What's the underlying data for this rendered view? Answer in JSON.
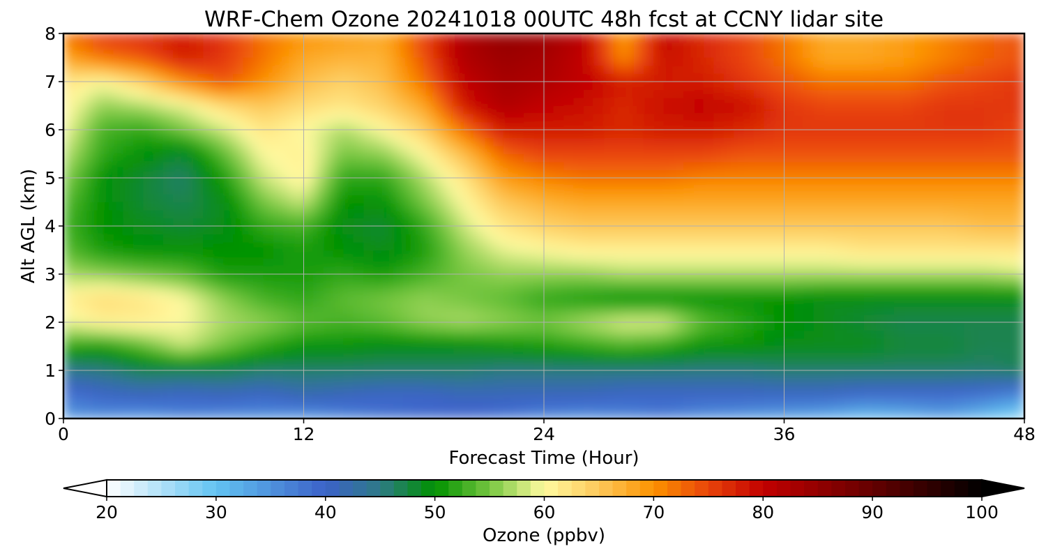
{
  "chart_data": {
    "type": "heatmap",
    "title": "WRF-Chem Ozone  20241018 00UTC 48h fcst at CCNY lidar site",
    "xlabel": "Forecast Time (Hour)",
    "ylabel": "Alt AGL (km)",
    "xlim": [
      0,
      48
    ],
    "ylim": [
      0,
      8
    ],
    "x_ticks": [
      "0",
      "12",
      "24",
      "36",
      "48"
    ],
    "y_ticks": [
      "0",
      "1",
      "2",
      "3",
      "4",
      "5",
      "6",
      "7",
      "8"
    ],
    "grid": true,
    "x_hours": [
      0,
      2,
      4,
      6,
      8,
      10,
      12,
      14,
      16,
      18,
      20,
      22,
      24,
      26,
      28,
      30,
      32,
      34,
      36,
      38,
      40,
      42,
      44,
      46,
      48
    ],
    "alt_km": [
      0,
      0.5,
      1,
      1.5,
      2,
      2.5,
      3,
      3.5,
      4,
      4.5,
      5,
      5.5,
      6,
      6.5,
      7,
      7.5,
      8
    ],
    "ozone_ppbv": [
      [
        34,
        35,
        34,
        36,
        35,
        35,
        34,
        36,
        38,
        39,
        39,
        38,
        36,
        35,
        36,
        37,
        35,
        34,
        33,
        32,
        30,
        31,
        33,
        30,
        26
      ],
      [
        38,
        40,
        41,
        40,
        41,
        40,
        42,
        41,
        40,
        40,
        41,
        41,
        41,
        41,
        40,
        40,
        40,
        40,
        40,
        40,
        39,
        39,
        39,
        38,
        36
      ],
      [
        44,
        45,
        47,
        47,
        47,
        46,
        46,
        46,
        46,
        46,
        46,
        45,
        45,
        45,
        45,
        45,
        45,
        45,
        46,
        46,
        46,
        46,
        46,
        46,
        47
      ],
      [
        52,
        51,
        54,
        58,
        55,
        52,
        50,
        50,
        49,
        49,
        49,
        50,
        51,
        52,
        53,
        52,
        50,
        50,
        49,
        49,
        49,
        48,
        48,
        47,
        47
      ],
      [
        59,
        61,
        61,
        60,
        57,
        56,
        54,
        53,
        54,
        56,
        57,
        56,
        55,
        57,
        59,
        59,
        54,
        52,
        50,
        49,
        48,
        47,
        47,
        47,
        47
      ],
      [
        61,
        63,
        62,
        60,
        56,
        53,
        52,
        54,
        55,
        56,
        55,
        54,
        52,
        51,
        50,
        50,
        50,
        50,
        50,
        49,
        49,
        49,
        49,
        49,
        49
      ],
      [
        57,
        56,
        55,
        54,
        51,
        51,
        51,
        52,
        51,
        53,
        55,
        56,
        56,
        56,
        57,
        57,
        57,
        57,
        57,
        57,
        57,
        57,
        57,
        57,
        58
      ],
      [
        54,
        51,
        50,
        50,
        50,
        50,
        51,
        50,
        49,
        51,
        56,
        59,
        60,
        61,
        61,
        61,
        61,
        61,
        61,
        61,
        62,
        62,
        62,
        62,
        62
      ],
      [
        53,
        50,
        49,
        48,
        49,
        52,
        53,
        49,
        48,
        52,
        58,
        62,
        64,
        65,
        65,
        65,
        65,
        65,
        65,
        65,
        65,
        65,
        65,
        66,
        66
      ],
      [
        54,
        50,
        48,
        47,
        49,
        55,
        58,
        50,
        50,
        55,
        60,
        65,
        67,
        68,
        68,
        68,
        68,
        68,
        68,
        68,
        68,
        68,
        68,
        68,
        68
      ],
      [
        56,
        50,
        48,
        46,
        51,
        58,
        61,
        52,
        52,
        57,
        62,
        69,
        71,
        72,
        72,
        72,
        71,
        71,
        71,
        71,
        71,
        71,
        71,
        71,
        71
      ],
      [
        58,
        52,
        50,
        48,
        54,
        60,
        61,
        55,
        56,
        60,
        66,
        73,
        75,
        75,
        75,
        75,
        75,
        74,
        74,
        74,
        74,
        74,
        74,
        74,
        74
      ],
      [
        60,
        53,
        52,
        55,
        58,
        62,
        60,
        57,
        60,
        64,
        72,
        78,
        78,
        78,
        77,
        78,
        78,
        77,
        76,
        76,
        76,
        76,
        76,
        76,
        75
      ],
      [
        61,
        56,
        57,
        59,
        63,
        65,
        63,
        62,
        64,
        68,
        78,
        82,
        80,
        79,
        77,
        79,
        80,
        79,
        76,
        75,
        75,
        75,
        76,
        76,
        76
      ],
      [
        62,
        60,
        64,
        70,
        74,
        70,
        66,
        64,
        66,
        72,
        80,
        83,
        82,
        80,
        78,
        78,
        78,
        76,
        74,
        72,
        72,
        72,
        74,
        75,
        76
      ],
      [
        68,
        72,
        74,
        78,
        76,
        72,
        68,
        67,
        67,
        74,
        82,
        84,
        83,
        80,
        70,
        79,
        77,
        75,
        72,
        68,
        68,
        69,
        71,
        73,
        74
      ],
      [
        72,
        76,
        77,
        78,
        76,
        72,
        70,
        69,
        68,
        75,
        82,
        85,
        84,
        81,
        69,
        80,
        77,
        75,
        72,
        68,
        68,
        69,
        71,
        73,
        74
      ]
    ]
  },
  "colorbar": {
    "label": "Ozone  (ppbv)",
    "min": 20,
    "max": 100,
    "ticks": [
      "20",
      "30",
      "40",
      "50",
      "60",
      "70",
      "80",
      "90",
      "100"
    ],
    "extend": "both",
    "colors": [
      [
        20,
        "#ffffff"
      ],
      [
        30,
        "#62c3f2"
      ],
      [
        40,
        "#3c62c8"
      ],
      [
        45,
        "#2e7a86"
      ],
      [
        50,
        "#009100"
      ],
      [
        55,
        "#76c640"
      ],
      [
        60,
        "#fffaa0"
      ],
      [
        65,
        "#fdc85a"
      ],
      [
        70,
        "#fc9200"
      ],
      [
        75,
        "#e9440a"
      ],
      [
        80,
        "#c20000"
      ],
      [
        90,
        "#640000"
      ],
      [
        100,
        "#000000"
      ]
    ]
  }
}
